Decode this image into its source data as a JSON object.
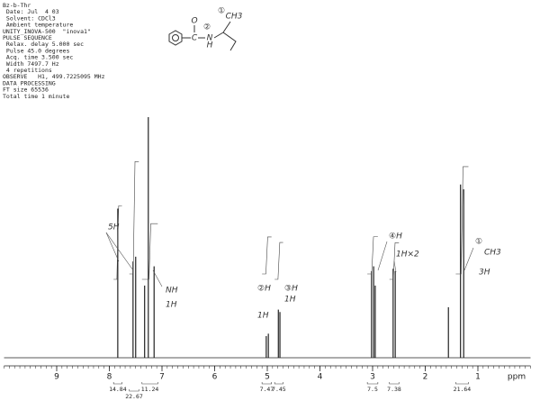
{
  "chart_data": {
    "type": "stem",
    "header": [
      "Bz-b-Thr",
      " Date: Jul  4 03",
      " Solvent: CDCl3",
      " Ambient temperature",
      "UNITY_INOVA-500  \"inova1\"",
      "PULSE SEQUENCE",
      " Relax. delay 5.000 sec",
      " Pulse 45.0 degrees",
      " Acq. time 3.500 sec",
      " Width 7497.7 Hz",
      " 4 repetitions",
      "OBSERVE   H1, 499.7225095 MHz",
      "DATA PROCESSING",
      "FT size 65536",
      "Total time 1 minute"
    ],
    "structure": [
      "O",
      "C",
      "N",
      "H",
      "CH3",
      "①",
      "②"
    ],
    "x_label": "ppm",
    "x": [
      7.84,
      7.55,
      7.5,
      7.33,
      7.26,
      7.15,
      5.02,
      4.98,
      4.79,
      4.76,
      3.02,
      2.98,
      2.95,
      2.61,
      2.57,
      1.56,
      1.33,
      1.27
    ],
    "values": [
      62,
      40,
      42,
      30,
      100,
      38,
      9,
      10,
      20,
      19,
      36,
      38,
      30,
      37,
      36,
      21,
      72,
      70
    ],
    "color": "#222222",
    "xlim": [
      10,
      0
    ],
    "ylim": [
      0,
      100
    ],
    "xticks": [
      9,
      8,
      7,
      6,
      5,
      4,
      3,
      2,
      1
    ],
    "integrals": [
      {
        "range": [
          7.92,
          7.76
        ],
        "value": 14.84
      },
      {
        "range": [
          7.62,
          7.44
        ],
        "value": 22.67
      },
      {
        "range": [
          7.38,
          7.08
        ],
        "value": 11.24
      },
      {
        "range": [
          5.1,
          4.92
        ],
        "value": 7.47
      },
      {
        "range": [
          4.86,
          4.7
        ],
        "value": 7.45
      },
      {
        "range": [
          3.1,
          2.9
        ],
        "value": 7.5
      },
      {
        "range": [
          2.68,
          2.5
        ],
        "value": 7.38
      },
      {
        "range": [
          1.42,
          1.18
        ],
        "value": 21.64
      }
    ],
    "annotations": [
      "5H",
      "NH",
      "1H",
      "②H",
      "1H",
      "③H",
      "1H",
      "④H",
      "1H×2",
      "①",
      "CH3",
      "3H"
    ]
  }
}
